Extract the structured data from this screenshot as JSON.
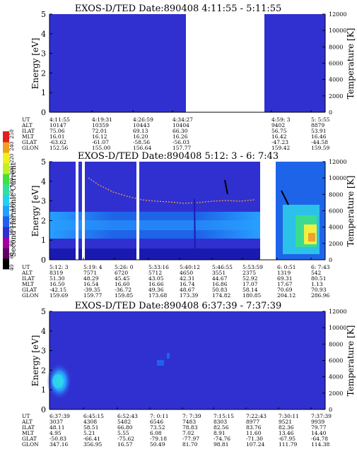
{
  "colors": {
    "background": "#3030d0",
    "gap": "#ffffff",
    "band_dark": "#1a1ab0",
    "band_mid": "#1e64e8",
    "band_light": "#28a0ff",
    "trace": "#e8a040",
    "aurora_cyan": "#30d8e8",
    "aurora_green": "#40e080",
    "aurora_yellow": "#f0f040",
    "aurora_orange": "#f0a030",
    "black": "#000000"
  },
  "colorbar": {
    "label": "Second Harmonic Current",
    "ticks": [
      "40",
      "60",
      "80",
      "100",
      "120",
      "140",
      "160",
      "180",
      "200",
      "220",
      "240",
      "250"
    ],
    "colors": [
      "#000000",
      "#600060",
      "#a000a0",
      "#3030d0",
      "#2060f0",
      "#20a0ff",
      "#20d0f0",
      "#30e0a0",
      "#40e040",
      "#c0f020",
      "#f0f020",
      "#f0a020",
      "#e02020"
    ]
  },
  "chart_data": [
    {
      "type": "heatmap",
      "title": "EXOS-D/TED   Date:890408   4:11:55 - 5:11:55",
      "ylabel": "Energy [eV]",
      "ylabel_right": "Temperature [K]",
      "yticks": [
        "0",
        "1",
        "2",
        "3",
        "4",
        "5"
      ],
      "yticks_right": [
        "0",
        "2000",
        "4000",
        "6000",
        "8000",
        "10000",
        "12000"
      ],
      "ylim": [
        0,
        5
      ],
      "ylim_right": [
        0,
        12000
      ],
      "data_gap": "4:34:27 - 4:59:3",
      "orbit_rows": [
        "UT",
        "ALT",
        "ILAT",
        "MLT",
        "GLAT",
        "GLON"
      ],
      "orbit_columns": [
        {
          "UT": "4:11:55",
          "ALT": "10147",
          "ILAT": "75.06",
          "MLT": "16.01",
          "GLAT": "-63.62",
          "GLON": "152.56"
        },
        {
          "UT": "4:19:31",
          "ALT": "10359",
          "ILAT": "72.01",
          "MLT": "16.12",
          "GLAT": "-61.07",
          "GLON": "155.00"
        },
        {
          "UT": "4:26:59",
          "ALT": "10443",
          "ILAT": "69.13",
          "MLT": "16.20",
          "GLAT": "-58.56",
          "GLON": "156.64"
        },
        {
          "UT": "4:34:27",
          "ALT": "10404",
          "ILAT": "66.30",
          "MLT": "16.26",
          "GLAT": "-56.03",
          "GLON": "157.77"
        },
        {
          "UT": "4:59: 3",
          "ALT": "9402",
          "ILAT": "56.75",
          "MLT": "16.42",
          "GLAT": "-47.23",
          "GLON": "159.42"
        },
        {
          "UT": "5: 5:55",
          "ALT": "8879",
          "ILAT": "53.91",
          "MLT": "16.46",
          "GLAT": "-44.58",
          "GLON": "159.59"
        }
      ]
    },
    {
      "type": "heatmap",
      "title": "EXOS-D/TED   Date:890408   5:12: 3 -  6: 7:43",
      "ylabel": "Energy [eV]",
      "ylabel_right": "Temperature [K]",
      "yticks": [
        "0",
        "1",
        "2",
        "3",
        "4",
        "5"
      ],
      "yticks_right": [
        "0",
        "2000",
        "4000",
        "6000",
        "8000",
        "10000",
        "12000"
      ],
      "ylim": [
        0,
        5
      ],
      "ylim_right": [
        0,
        12000
      ],
      "orbit_rows": [
        "UT",
        "ALT",
        "ILAT",
        "MLT",
        "GLAT",
        "GLON"
      ],
      "orbit_columns": [
        {
          "UT": "5:12: 3",
          "ALT": "8319",
          "ILAT": "51.30",
          "MLT": "16.50",
          "GLAT": "-42.15",
          "GLON": "159.69"
        },
        {
          "UT": "5:19: 4",
          "ALT": "7571",
          "ILAT": "48.29",
          "MLT": "16.54",
          "GLAT": "-39.35",
          "GLON": "159.77"
        },
        {
          "UT": "5:26: 0",
          "ALT": "6720",
          "ILAT": "45.45",
          "MLT": "16.60",
          "GLAT": "-36.72",
          "GLON": "159.85"
        },
        {
          "UT": "5:33:16",
          "ALT": "5712",
          "ILAT": "43.05",
          "MLT": "16.66",
          "GLAT": "49.36",
          "GLON": "173.68"
        },
        {
          "UT": "5:40:12",
          "ALT": "4650",
          "ILAT": "42.31",
          "MLT": "16.74",
          "GLAT": "48.67",
          "GLON": "173.39"
        },
        {
          "UT": "5:46:55",
          "ALT": "3551",
          "ILAT": "44.67",
          "MLT": "16.86",
          "GLAT": "50.83",
          "GLON": "174.82"
        },
        {
          "UT": "5:53:59",
          "ALT": "2375",
          "ILAT": "52.92",
          "MLT": "17.07",
          "GLAT": "58.14",
          "GLON": "180.85"
        },
        {
          "UT": "6: 0:51",
          "ALT": "1319",
          "ILAT": "69.31",
          "MLT": "17.67",
          "GLAT": "70.69",
          "GLON": "204.12"
        },
        {
          "UT": "6: 7:43",
          "ALT": "542",
          "ILAT": "80.51",
          "MLT": "1.13",
          "GLAT": "70.93",
          "GLON": "286.96"
        }
      ]
    },
    {
      "type": "heatmap",
      "title": "EXOS-D/TED   Date:890408   6:37:39 - 7:37:39",
      "ylabel": "Energy [eV]",
      "ylabel_right": "Temperature [K]",
      "yticks": [
        "0",
        "1",
        "2",
        "3",
        "4",
        "5"
      ],
      "yticks_right": [
        "0",
        "2000",
        "4000",
        "6000",
        "8000",
        "10000",
        "12000"
      ],
      "ylim": [
        0,
        5
      ],
      "ylim_right": [
        0,
        12000
      ],
      "orbit_rows": [
        "UT",
        "ALT",
        "ILAT",
        "MLT",
        "GLAT",
        "GLON"
      ],
      "orbit_columns": [
        {
          "UT": "6:37:39",
          "ALT": "3037",
          "ILAT": "48.11",
          "MLT": "4.95",
          "GLAT": "-50.83",
          "GLON": "347.16"
        },
        {
          "UT": "6:45:15",
          "ALT": "4308",
          "ILAT": "58.51",
          "MLT": "5.21",
          "GLAT": "-66.41",
          "GLON": "356.95"
        },
        {
          "UT": "6:52:43",
          "ALT": "5482",
          "ILAT": "66.80",
          "MLT": "5.55",
          "GLAT": "-75.62",
          "GLON": "16.57"
        },
        {
          "UT": "7: 0:11",
          "ALT": "6546",
          "ILAT": "73.52",
          "MLT": "6.08",
          "GLAT": "-79.18",
          "GLON": "50.49"
        },
        {
          "UT": "7: 7:39",
          "ALT": "7483",
          "ILAT": "78.83",
          "MLT": "7.02",
          "GLAT": "-77.97",
          "GLON": "81.70"
        },
        {
          "UT": "7:15:15",
          "ALT": "8303",
          "ILAT": "82.56",
          "MLT": "8.91",
          "GLAT": "-74.76",
          "GLON": "98.81"
        },
        {
          "UT": "7:22:43",
          "ALT": "8977",
          "ILAT": "83.76",
          "MLT": "11.60",
          "GLAT": "-71.30",
          "GLON": "107.24"
        },
        {
          "UT": "7:30:11",
          "ALT": "9521",
          "ILAT": "82.36",
          "MLT": "13.46",
          "GLAT": "-67.95",
          "GLON": "111.79"
        },
        {
          "UT": "7:37:39",
          "ALT": "9939",
          "ILAT": "79.77",
          "MLT": "14.40",
          "GLAT": "-64.78",
          "GLON": "114.38"
        }
      ]
    }
  ]
}
